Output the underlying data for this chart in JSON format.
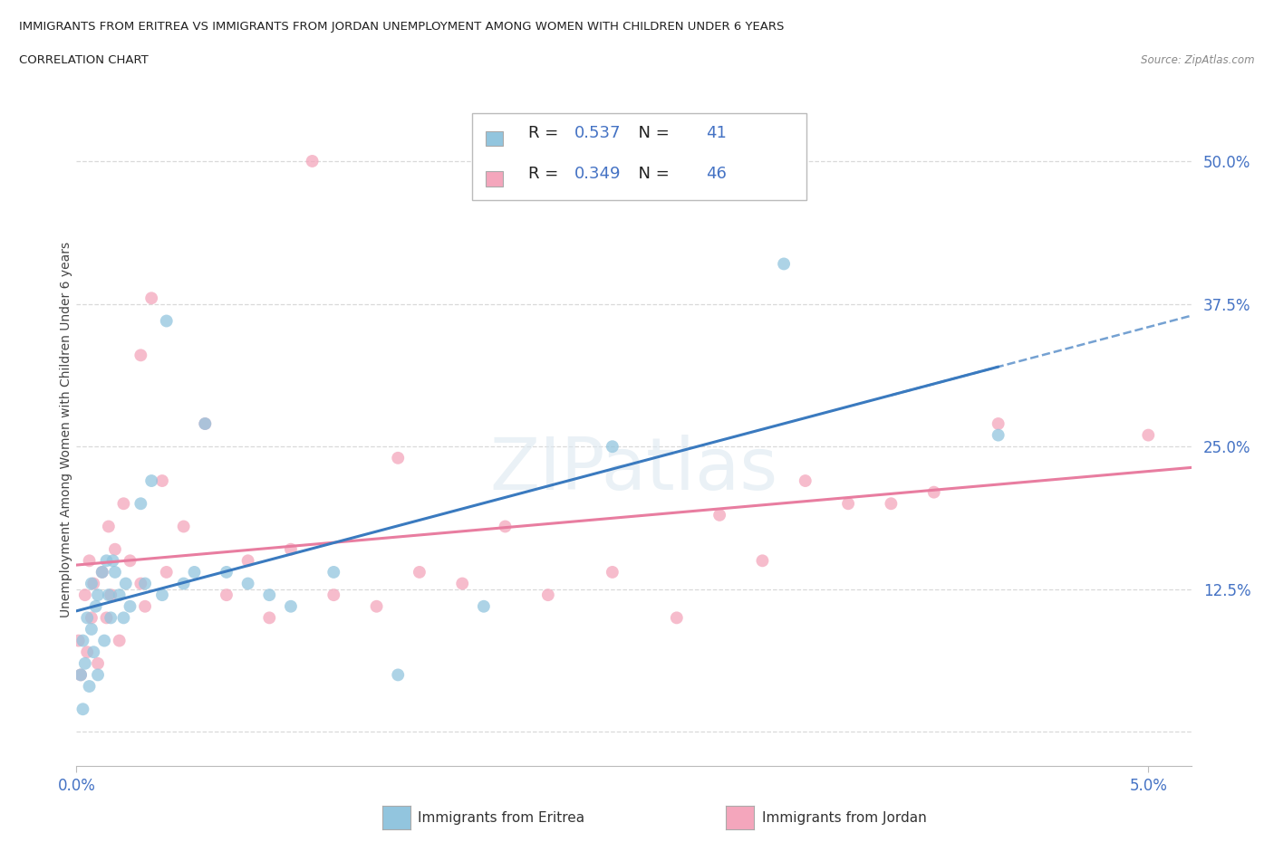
{
  "title_line1": "IMMIGRANTS FROM ERITREA VS IMMIGRANTS FROM JORDAN UNEMPLOYMENT AMONG WOMEN WITH CHILDREN UNDER 6 YEARS",
  "title_line2": "CORRELATION CHART",
  "source": "Source: ZipAtlas.com",
  "ylabel": "Unemployment Among Women with Children Under 6 years",
  "xlim": [
    0.0,
    0.052
  ],
  "ylim": [
    -0.03,
    0.56
  ],
  "ytick_vals": [
    0.0,
    0.125,
    0.25,
    0.375,
    0.5
  ],
  "ytick_labels": [
    "",
    "12.5%",
    "25.0%",
    "37.5%",
    "50.0%"
  ],
  "xtick_vals": [
    0.0,
    0.05
  ],
  "xtick_labels": [
    "0.0%",
    "5.0%"
  ],
  "watermark": "ZIPatlas",
  "eritrea_color": "#92c5de",
  "jordan_color": "#f4a6bc",
  "eritrea_line_color": "#3a7abf",
  "jordan_line_color": "#e87da0",
  "eritrea_R": 0.537,
  "eritrea_N": 41,
  "jordan_R": 0.349,
  "jordan_N": 46,
  "eritrea_x": [
    0.0002,
    0.0003,
    0.0003,
    0.0004,
    0.0005,
    0.0006,
    0.0007,
    0.0007,
    0.0008,
    0.0009,
    0.001,
    0.001,
    0.0012,
    0.0013,
    0.0014,
    0.0015,
    0.0016,
    0.0017,
    0.0018,
    0.002,
    0.0022,
    0.0023,
    0.0025,
    0.003,
    0.0032,
    0.0035,
    0.004,
    0.0042,
    0.005,
    0.0055,
    0.006,
    0.007,
    0.008,
    0.009,
    0.01,
    0.012,
    0.015,
    0.019,
    0.025,
    0.033,
    0.043
  ],
  "eritrea_y": [
    0.05,
    0.02,
    0.08,
    0.06,
    0.1,
    0.04,
    0.09,
    0.13,
    0.07,
    0.11,
    0.05,
    0.12,
    0.14,
    0.08,
    0.15,
    0.12,
    0.1,
    0.15,
    0.14,
    0.12,
    0.1,
    0.13,
    0.11,
    0.2,
    0.13,
    0.22,
    0.12,
    0.36,
    0.13,
    0.14,
    0.27,
    0.14,
    0.13,
    0.12,
    0.11,
    0.14,
    0.05,
    0.11,
    0.25,
    0.41,
    0.26
  ],
  "jordan_x": [
    0.0001,
    0.0002,
    0.0004,
    0.0005,
    0.0006,
    0.0007,
    0.0008,
    0.001,
    0.0012,
    0.0014,
    0.0015,
    0.0016,
    0.0018,
    0.002,
    0.0022,
    0.0025,
    0.003,
    0.003,
    0.0032,
    0.0035,
    0.004,
    0.0042,
    0.005,
    0.006,
    0.007,
    0.008,
    0.009,
    0.01,
    0.011,
    0.012,
    0.014,
    0.015,
    0.016,
    0.018,
    0.02,
    0.022,
    0.025,
    0.028,
    0.03,
    0.032,
    0.034,
    0.036,
    0.038,
    0.04,
    0.043,
    0.05
  ],
  "jordan_y": [
    0.08,
    0.05,
    0.12,
    0.07,
    0.15,
    0.1,
    0.13,
    0.06,
    0.14,
    0.1,
    0.18,
    0.12,
    0.16,
    0.08,
    0.2,
    0.15,
    0.13,
    0.33,
    0.11,
    0.38,
    0.22,
    0.14,
    0.18,
    0.27,
    0.12,
    0.15,
    0.1,
    0.16,
    0.5,
    0.12,
    0.11,
    0.24,
    0.14,
    0.13,
    0.18,
    0.12,
    0.14,
    0.1,
    0.19,
    0.15,
    0.22,
    0.2,
    0.2,
    0.21,
    0.27,
    0.26
  ],
  "bg_color": "#ffffff",
  "grid_color": "#d0d0d0",
  "axis_label_color": "#4472c4",
  "legend_box_color": "#f0f4fa"
}
